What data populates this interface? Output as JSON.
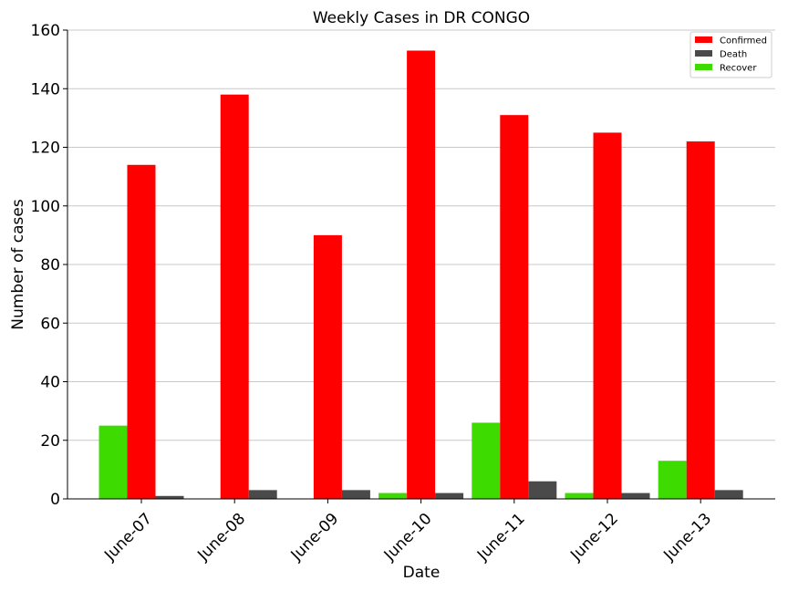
{
  "chart_data": {
    "type": "bar",
    "title": "Weekly Cases in DR CONGO",
    "xlabel": "Date",
    "ylabel": "Number of cases",
    "categories": [
      "June-07",
      "June-08",
      "June-09",
      "June-10",
      "June-11",
      "June-12",
      "June-13"
    ],
    "series": [
      {
        "name": "Recover",
        "color": "#3ddb00",
        "values": [
          25,
          0,
          0,
          2,
          26,
          2,
          13
        ]
      },
      {
        "name": "Confirmed",
        "color": "#ff0000",
        "values": [
          114,
          138,
          90,
          153,
          131,
          125,
          122
        ]
      },
      {
        "name": "Death",
        "color": "#4a4a4a",
        "values": [
          1,
          3,
          3,
          2,
          6,
          2,
          3
        ]
      }
    ],
    "legend_order": [
      "Confirmed",
      "Death",
      "Recover"
    ],
    "legend_position": "top-right",
    "ylim": [
      0,
      160
    ],
    "yticks": [
      0,
      20,
      40,
      60,
      80,
      100,
      120,
      140,
      160
    ],
    "grid": "horizontal"
  }
}
